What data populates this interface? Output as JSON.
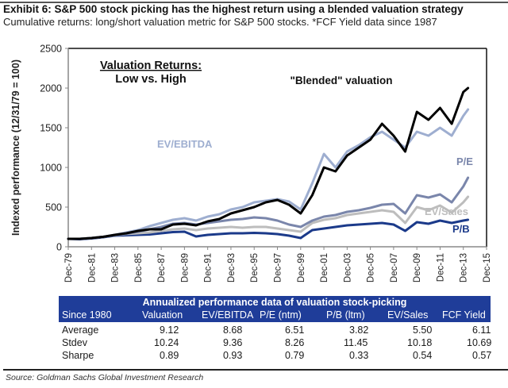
{
  "header": {
    "title": "Exhibit 6: S&P 500 stock picking has the highest return using a blended valuation strategy",
    "subtitle": "Cumulative returns: long/short valuation metric for S&P 500 stocks. *FCF Yield data since 1987"
  },
  "chart_data": {
    "type": "line",
    "title": "Valuation Returns:",
    "title_line2": "Low vs. High",
    "xlabel": "",
    "ylabel": "Indexed performance (12/31/79 = 100)",
    "ylim": [
      0,
      2500
    ],
    "yticks": [
      0,
      500,
      1000,
      1500,
      2000,
      2500
    ],
    "xlim": [
      1979,
      2015
    ],
    "xtick_labels": [
      "Dec-79",
      "Dec-81",
      "Dec-83",
      "Dec-85",
      "Dec-87",
      "Dec-89",
      "Dec-91",
      "Dec-93",
      "Dec-95",
      "Dec-97",
      "Dec-99",
      "Dec-01",
      "Dec-03",
      "Dec-05",
      "Dec-07",
      "Dec-09",
      "Dec-11",
      "Dec-13",
      "Dec-15"
    ],
    "xtick_years": [
      1979,
      1981,
      1983,
      1985,
      1987,
      1989,
      1991,
      1993,
      1995,
      1997,
      1999,
      2001,
      2003,
      2005,
      2007,
      2009,
      2011,
      2013,
      2015
    ],
    "grid": false,
    "legend": "inline-labels",
    "x": [
      1979,
      1980,
      1981,
      1982,
      1983,
      1984,
      1985,
      1986,
      1987,
      1988,
      1989,
      1990,
      1991,
      1992,
      1993,
      1994,
      1995,
      1996,
      1997,
      1998,
      1999,
      2000,
      2001,
      2002,
      2003,
      2004,
      2005,
      2006,
      2007,
      2008,
      2009,
      2010,
      2011,
      2012,
      2013,
      2013.4
    ],
    "series": [
      {
        "name": "P/B",
        "label": "P/B",
        "color": "#1b3a8a",
        "values": [
          100,
          95,
          105,
          120,
          140,
          145,
          150,
          155,
          170,
          185,
          190,
          130,
          150,
          160,
          170,
          170,
          175,
          170,
          160,
          140,
          110,
          210,
          230,
          250,
          270,
          280,
          290,
          300,
          280,
          200,
          310,
          290,
          330,
          300,
          330,
          340
        ]
      },
      {
        "name": "EV/Sales",
        "label": "EV/Sales",
        "color": "#bdbdbd",
        "values": [
          100,
          100,
          110,
          125,
          145,
          160,
          170,
          180,
          200,
          220,
          230,
          210,
          230,
          240,
          250,
          240,
          250,
          250,
          230,
          210,
          190,
          300,
          340,
          360,
          400,
          420,
          440,
          460,
          440,
          300,
          500,
          460,
          520,
          430,
          560,
          630
        ]
      },
      {
        "name": "P/E",
        "label": "P/E",
        "color": "#7a86ab",
        "values": [
          100,
          100,
          110,
          125,
          145,
          165,
          190,
          220,
          250,
          290,
          300,
          280,
          300,
          320,
          340,
          350,
          370,
          360,
          330,
          280,
          250,
          330,
          380,
          400,
          440,
          460,
          490,
          530,
          540,
          420,
          650,
          620,
          660,
          560,
          760,
          870
        ]
      },
      {
        "name": "EV/EBITDA",
        "label": "EV/EBITDA",
        "color": "#9eaed0",
        "values": [
          100,
          100,
          110,
          125,
          150,
          180,
          210,
          260,
          300,
          340,
          360,
          330,
          380,
          410,
          470,
          500,
          560,
          580,
          600,
          570,
          470,
          800,
          1170,
          1000,
          1200,
          1280,
          1380,
          1450,
          1350,
          1250,
          1450,
          1400,
          1500,
          1400,
          1650,
          1730
        ]
      },
      {
        "name": "Blended valuation",
        "label": "\"Blended\" valuation",
        "color": "#000000",
        "values": [
          100,
          100,
          110,
          125,
          150,
          170,
          200,
          220,
          220,
          280,
          290,
          270,
          320,
          350,
          420,
          460,
          500,
          560,
          590,
          530,
          420,
          650,
          1000,
          950,
          1150,
          1250,
          1350,
          1550,
          1400,
          1200,
          1700,
          1600,
          1750,
          1550,
          1950,
          2000
        ]
      }
    ]
  },
  "table": {
    "caption": "Annualized performance data of valuation stock-picking",
    "columns": [
      "Since 1980",
      "Valuation",
      "EV/EBITDA",
      "P/E (ntm)",
      "P/B (ltm)",
      "EV/Sales",
      "FCF Yield"
    ],
    "rows": [
      {
        "label": "Average",
        "values": [
          "9.12",
          "8.68",
          "6.51",
          "3.82",
          "5.50",
          "6.11"
        ]
      },
      {
        "label": "Stdev",
        "values": [
          "10.24",
          "9.36",
          "8.26",
          "11.45",
          "10.18",
          "10.69"
        ]
      },
      {
        "label": "Sharpe",
        "values": [
          "0.89",
          "0.93",
          "0.79",
          "0.33",
          "0.54",
          "0.57"
        ]
      }
    ]
  },
  "footer": {
    "source": "Source: Goldman Sachs Global Investment Research"
  }
}
